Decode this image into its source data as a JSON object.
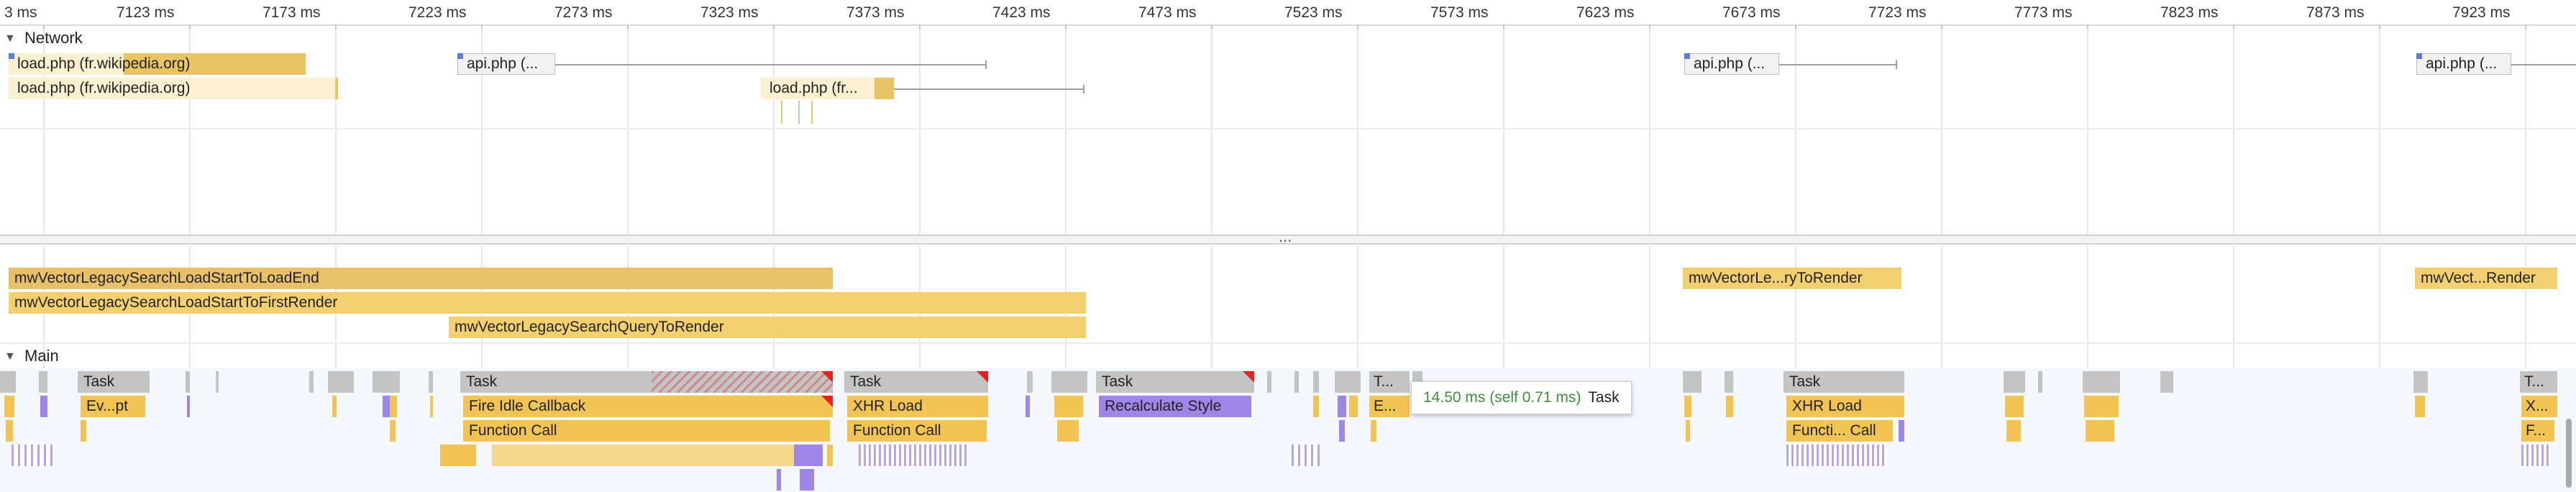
{
  "ruler": {
    "ticks": [
      "3 ms",
      "7123 ms",
      "7173 ms",
      "7223 ms",
      "7273 ms",
      "7323 ms",
      "7373 ms",
      "7423 ms",
      "7473 ms",
      "7523 ms",
      "7573 ms",
      "7623 ms",
      "7673 ms",
      "7723 ms",
      "7773 ms",
      "7823 ms",
      "7873 ms",
      "7923 ms"
    ]
  },
  "network": {
    "section_title": "Network",
    "expand_glyph": "▼",
    "requests": [
      {
        "label": "load.php (fr.wikipedia.org)"
      },
      {
        "label": "load.php (fr.wikipedia.org)"
      },
      {
        "label": "api.php (..."
      },
      {
        "label": "load.php (fr..."
      },
      {
        "label": "api.php (..."
      },
      {
        "label": "api.php (..."
      }
    ]
  },
  "splitter": {
    "grip": "..."
  },
  "timings": {
    "bars": [
      {
        "label": "mwVectorLegacySearchLoadStartToLoadEnd"
      },
      {
        "label": "mwVectorLegacySearchLoadStartToFirstRender"
      },
      {
        "label": "mwVectorLegacySearchQueryToRender"
      },
      {
        "label": "mwVectorLe...ryToRender"
      },
      {
        "label": "mwVect...Render"
      }
    ]
  },
  "main": {
    "section_title": "Main",
    "expand_glyph": "▼",
    "tasks": [
      "Task",
      "Task",
      "Task",
      "Task",
      "T...",
      "Task",
      "T..."
    ],
    "level2": [
      "Ev...pt",
      "Fire Idle Callback",
      "XHR Load",
      "Recalculate Style",
      "E...",
      "XHR Load",
      "X..."
    ],
    "level3": [
      "Function Call",
      "Function Call",
      "Functi... Call",
      "F..."
    ]
  },
  "tooltip": {
    "duration": "14.50 ms (self 0.71 ms)",
    "name": "Task"
  },
  "colors": {
    "task_gray": "#c4c4c4",
    "scripting_yellow": "#f1c453",
    "timing_yellow": "#f3d06f",
    "loading_purple": "#9e87e8",
    "network_dark": "#e9c465",
    "network_light": "#fbf0cf",
    "long_task_red": "#e8221a",
    "tooltip_green": "#3f8f3a"
  }
}
